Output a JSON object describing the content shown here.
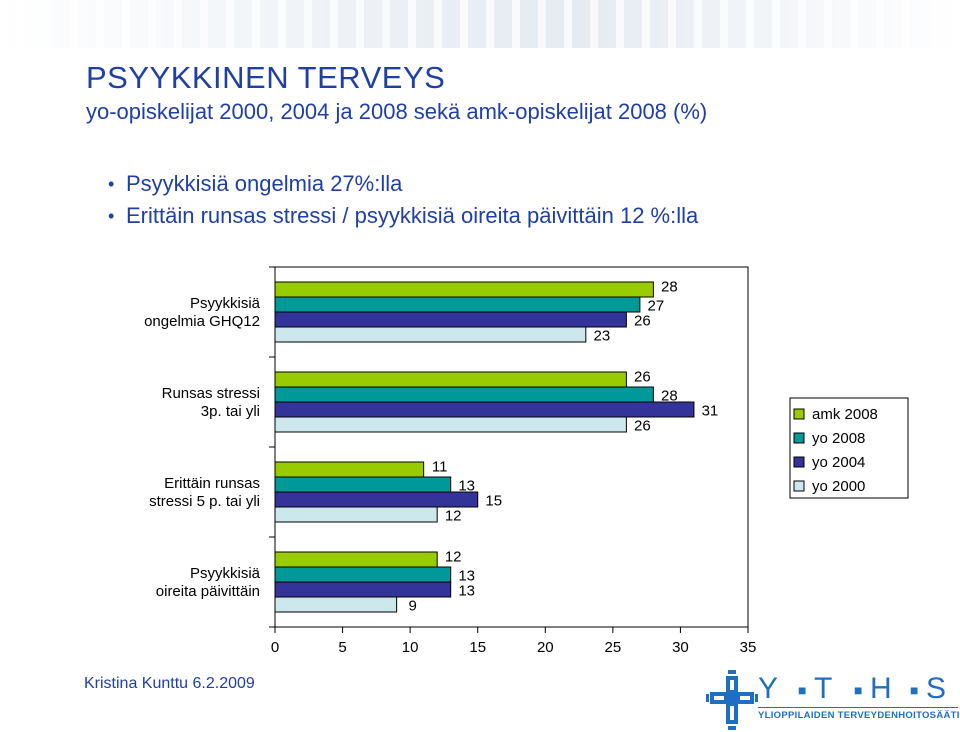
{
  "slide": {
    "title": "PSYYKKINEN TERVEYS",
    "subtitle": "yo-opiskelijat 2000, 2004 ja 2008 sekä amk-opiskelijat 2008 (%)",
    "bullets": [
      "Psyykkisiä ongelmia 27%:lla",
      "Erittäin runsas stressi / psyykkisiä oireita päivittäin 12 %:lla"
    ],
    "author": "Kristina Kunttu 6.2.2009",
    "logo": {
      "letters": [
        "Y",
        "T",
        "H",
        "S"
      ],
      "tagline": "YLIOPPILAIDEN TERVEYDENHOITOSÄÄTIÖ",
      "color": "#1f6fc0"
    }
  },
  "chart_data": {
    "type": "bar",
    "orientation": "horizontal",
    "categories": [
      [
        "Psyykkisiä",
        "ongelmia GHQ12"
      ],
      [
        "Runsas stressi",
        "3p. tai yli"
      ],
      [
        "Erittäin runsas",
        "stressi 5 p. tai yli"
      ],
      [
        "Psyykkisiä",
        "oireita päivittäin"
      ]
    ],
    "series": [
      {
        "name": "amk 2008",
        "color": "#99cc00",
        "values": [
          28,
          26,
          11,
          12
        ]
      },
      {
        "name": "yo 2008",
        "color": "#009999",
        "values": [
          27,
          28,
          13,
          13
        ]
      },
      {
        "name": "yo 2004",
        "color": "#333399",
        "values": [
          26,
          31,
          15,
          13
        ]
      },
      {
        "name": "yo 2000",
        "color": "#cce8ec",
        "values": [
          23,
          26,
          12,
          9
        ]
      }
    ],
    "xlim": [
      0,
      35
    ],
    "xticks": [
      0,
      5,
      10,
      15,
      20,
      25,
      30,
      35
    ],
    "legend_position": "right",
    "grid": false
  }
}
